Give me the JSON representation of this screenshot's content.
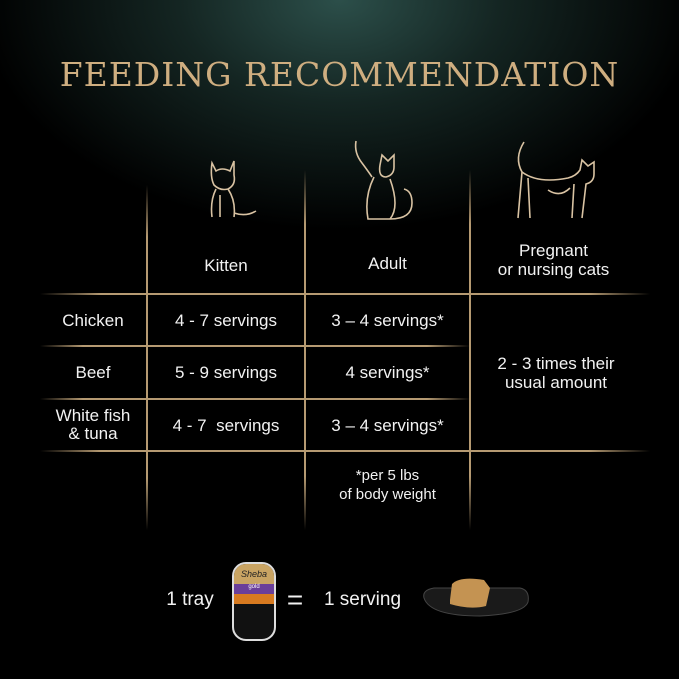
{
  "title": "FEEDING RECOMMENDATION",
  "table": {
    "columns": [
      {
        "label": "Kitten",
        "icon": "kitten-icon"
      },
      {
        "label": "Adult",
        "icon": "adult-cat-icon"
      },
      {
        "label": "Pregnant\nor nursing cats",
        "icon": "pregnant-cat-icon"
      }
    ],
    "rows": [
      {
        "label": "Chicken",
        "kitten": "4 - 7 servings",
        "adult": "3 – 4 servings*"
      },
      {
        "label": "Beef",
        "kitten": "5 - 9 servings",
        "adult": "4 servings*"
      },
      {
        "label": "White fish\n& tuna",
        "kitten": "4 - 7  servings",
        "adult": "3 – 4 servings*"
      }
    ],
    "pregnant_value": "2 - 3 times their\nusual amount",
    "footnote": "*per 5 lbs\nof body weight"
  },
  "equation": {
    "left": "1 tray",
    "equals": "=",
    "right": "1 serving",
    "tray_brand": "Sheba",
    "tray_line": "gold"
  },
  "colors": {
    "title": "#cfae80",
    "lines": "#b59a72",
    "background": "#000000",
    "glow": "#2c4f4a"
  }
}
